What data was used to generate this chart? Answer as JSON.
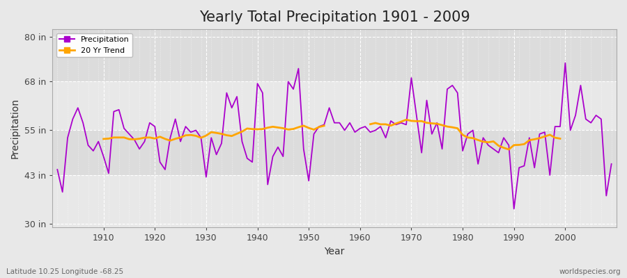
{
  "title": "Yearly Total Precipitation 1901 - 2009",
  "xlabel": "Year",
  "ylabel": "Precipitation",
  "subtitle": "Latitude 10.25 Longitude -68.25",
  "watermark": "worldspecies.org",
  "ylim": [
    29,
    82
  ],
  "yticks": [
    30,
    43,
    55,
    68,
    80
  ],
  "ytick_labels": [
    "30 in",
    "43 in",
    "55 in",
    "68 in",
    "80 in"
  ],
  "years": [
    1901,
    1902,
    1903,
    1904,
    1905,
    1906,
    1907,
    1908,
    1909,
    1910,
    1911,
    1912,
    1913,
    1914,
    1915,
    1916,
    1917,
    1918,
    1919,
    1920,
    1921,
    1922,
    1923,
    1924,
    1925,
    1926,
    1927,
    1928,
    1929,
    1930,
    1931,
    1932,
    1933,
    1934,
    1935,
    1936,
    1937,
    1938,
    1939,
    1940,
    1941,
    1942,
    1943,
    1944,
    1945,
    1946,
    1947,
    1948,
    1949,
    1950,
    1951,
    1952,
    1953,
    1954,
    1955,
    1956,
    1957,
    1958,
    1959,
    1960,
    1961,
    1962,
    1963,
    1964,
    1965,
    1966,
    1967,
    1968,
    1969,
    1970,
    1971,
    1972,
    1973,
    1974,
    1975,
    1976,
    1977,
    1978,
    1979,
    1980,
    1981,
    1982,
    1983,
    1984,
    1985,
    1986,
    1987,
    1988,
    1989,
    1990,
    1991,
    1992,
    1993,
    1994,
    1995,
    1996,
    1997,
    1998,
    1999,
    2000,
    2001,
    2002,
    2003,
    2004,
    2005,
    2006,
    2007,
    2008,
    2009
  ],
  "precip": [
    44.5,
    38.5,
    53.0,
    58.0,
    61.0,
    57.0,
    51.0,
    49.5,
    52.0,
    48.0,
    43.5,
    60.0,
    60.5,
    55.5,
    54.0,
    52.5,
    50.0,
    52.0,
    57.0,
    56.0,
    46.5,
    44.5,
    53.0,
    58.0,
    52.0,
    56.0,
    54.5,
    55.0,
    53.0,
    42.5,
    53.0,
    48.5,
    51.5,
    65.0,
    61.0,
    64.0,
    52.0,
    47.5,
    46.5,
    67.5,
    65.0,
    40.5,
    48.0,
    50.5,
    48.0,
    68.0,
    66.0,
    71.5,
    50.0,
    41.5,
    54.0,
    56.0,
    56.5,
    61.0,
    57.0,
    57.0,
    55.0,
    57.0,
    54.5,
    55.5,
    56.0,
    54.5,
    55.0,
    56.0,
    53.0,
    57.5,
    56.5,
    57.0,
    56.5,
    69.0,
    59.0,
    49.0,
    63.0,
    54.0,
    57.0,
    50.0,
    66.0,
    67.0,
    65.0,
    49.5,
    54.0,
    55.0,
    46.0,
    53.0,
    51.0,
    50.0,
    49.0,
    53.0,
    51.0,
    34.0,
    45.0,
    45.5,
    53.0,
    45.0,
    54.0,
    54.5,
    43.0,
    56.0,
    56.0,
    73.0,
    55.0,
    59.0,
    67.0,
    58.0,
    57.0,
    59.0,
    58.0,
    37.5,
    46.0
  ],
  "precip_color": "#AA00CC",
  "trend_color": "#FFA500",
  "bg_color": "#E8E8E8",
  "plot_bg_color": "#EFEFEF",
  "band1_color": "#E8E8E8",
  "band2_color": "#DCDCDC",
  "grid_color": "#FFFFFF",
  "legend_labels": [
    "Precipitation",
    "20 Yr Trend"
  ],
  "title_fontsize": 15,
  "axis_fontsize": 10,
  "tick_fontsize": 9,
  "trend_window": 20
}
